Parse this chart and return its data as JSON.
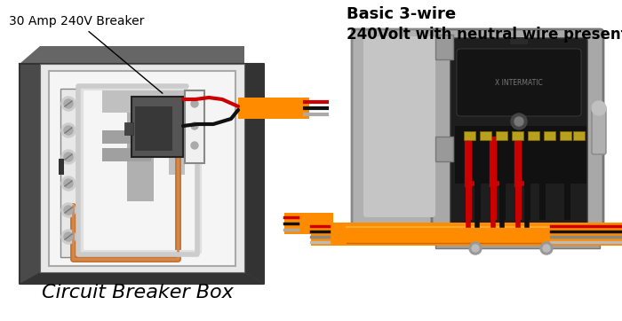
{
  "bg_color": "#ffffff",
  "title_left": "30 Amp 240V Breaker",
  "title_right_line1": "Basic 3-wire",
  "title_right_line2": "240Volt with neutral wire present",
  "caption": "Circuit Breaker Box",
  "wire_colors": {
    "red": "#cc0000",
    "black": "#111111",
    "white": "#dddddd",
    "copper": "#c87533",
    "orange": "#ff8c00",
    "gray": "#aaaaaa",
    "silver": "#bbbbbb"
  },
  "panel_outer_color": "#555555",
  "panel_inner_color": "#e8e8e8",
  "panel_white_color": "#f5f5f5",
  "bus_color": "#cccccc",
  "breaker_color": "#555555",
  "breaker_dark": "#383838",
  "neutral_white": "#f0f0f0",
  "terminal_gold": "#b8a020",
  "right_body_color": "#a8a8a8",
  "right_inner_dark": "#1e1e1e",
  "door_color": "#b0b0b0",
  "door_inner_color": "#c5c5c5"
}
